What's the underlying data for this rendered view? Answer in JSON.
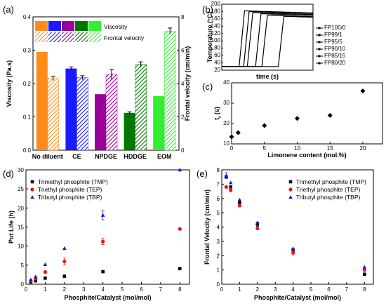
{
  "panels": {
    "a": "(a)",
    "b": "(b)",
    "c": "(c)",
    "d": "(d)",
    "e": "(e)"
  },
  "chart_data": [
    {
      "id": "a",
      "type": "bar",
      "categories": [
        "No diluent",
        "CE",
        "NPDGE",
        "HDDGE",
        "EOM"
      ],
      "series": [
        {
          "name": "Viscosity",
          "values": [
            0.295,
            0.245,
            0.168,
            0.112,
            0.162
          ],
          "errors": [
            0,
            0.005,
            0,
            0.003,
            0
          ]
        },
        {
          "name": "Frontal velocity",
          "values": [
            4.3,
            4.35,
            4.55,
            5.15,
            7.15
          ],
          "errors": [
            0.12,
            0.12,
            0.3,
            0.15,
            0.18
          ]
        }
      ],
      "colors": [
        "#ff8c1a",
        "#1a1aff",
        "#990099",
        "#007700",
        "#33ee33"
      ],
      "ylabel": "Viscosity (Pa.s)",
      "ylabel_right": "Frontal velocity (cm/min)",
      "ylim": [
        0,
        0.4
      ],
      "ylim_right": [
        0,
        8
      ],
      "yticks": [
        "0.0",
        "0.1",
        "0.2",
        "0.3",
        "0.4"
      ],
      "yticks_right": [
        "0",
        "2",
        "4",
        "6",
        "8"
      ]
    },
    {
      "id": "b",
      "type": "line",
      "xlabel": "time (s)",
      "ylabel": "Temperature (°C)",
      "xlim": [
        0,
        100
      ],
      "ylim": [
        20,
        200
      ],
      "yticks": [
        "20",
        "40",
        "60",
        "80",
        "100",
        "120",
        "140",
        "160",
        "180",
        "200"
      ],
      "legend": [
        "FP100/0",
        "FP99/1",
        "FP95/5",
        "FP90/10",
        "FP85/15",
        "FP80/20"
      ],
      "series": [
        {
          "name": "FP100/0",
          "onset": 19,
          "peak": 182
        },
        {
          "name": "FP99/1",
          "onset": 24,
          "peak": 180
        },
        {
          "name": "FP95/5",
          "onset": 28,
          "peak": 177
        },
        {
          "name": "FP90/10",
          "onset": 37,
          "peak": 174
        },
        {
          "name": "FP85/15",
          "onset": 44,
          "peak": 170
        },
        {
          "name": "FP80/20",
          "onset": 62,
          "peak": 167
        }
      ]
    },
    {
      "id": "c",
      "type": "scatter",
      "xlabel": "Limonene content (mol.%)",
      "ylabel": "t",
      "ylabel_sub": "r",
      "ylabel_unit": " (s)",
      "xlim": [
        0,
        23
      ],
      "ylim": [
        10,
        40
      ],
      "xticks": [
        "0",
        "5",
        "10",
        "15",
        "20"
      ],
      "yticks": [
        "10",
        "20",
        "30",
        "40"
      ],
      "x": [
        0,
        1,
        5,
        10,
        15,
        20
      ],
      "y": [
        13.5,
        15.5,
        19,
        22.5,
        24,
        36
      ]
    },
    {
      "id": "d",
      "type": "scatter",
      "xlabel": "Phosphite/Catalyst (mol/mol)",
      "ylabel": "Pot Life (h)",
      "xlim": [
        0,
        8.5
      ],
      "ylim": [
        0,
        30
      ],
      "xticks": [
        "0",
        "1",
        "2",
        "3",
        "4",
        "5",
        "6",
        "7",
        "8"
      ],
      "yticks": [
        "0",
        "5",
        "10",
        "15",
        "20",
        "25",
        "30"
      ],
      "legend_position": "top-left",
      "series": [
        {
          "name": "Trimethyl phosphite (TMP)",
          "color": "#000000",
          "marker": "square",
          "x": [
            0.25,
            0.5,
            1,
            2,
            4,
            8
          ],
          "y": [
            0.6,
            0.9,
            1.6,
            2.1,
            3.3,
            4.1
          ],
          "err": [
            0,
            0,
            0,
            0,
            0,
            0
          ]
        },
        {
          "name": "Triethyl phosphite (TEP)",
          "color": "#ee1111",
          "marker": "circle",
          "x": [
            0.25,
            0.5,
            1,
            2,
            4,
            8
          ],
          "y": [
            0.9,
            1.5,
            3.2,
            6.0,
            11.2,
            14.5
          ],
          "err": [
            0,
            0,
            0.3,
            0.9,
            0.8,
            0
          ]
        },
        {
          "name": "Tributyl phosphite (TBP)",
          "color": "#1a1acc",
          "marker": "triangle",
          "x": [
            0.25,
            0.5,
            1,
            2,
            4,
            8
          ],
          "y": [
            1.2,
            2.0,
            5.2,
            9.4,
            18.1,
            30.0
          ],
          "err": [
            0,
            0,
            0,
            0,
            1.2,
            0
          ]
        }
      ]
    },
    {
      "id": "e",
      "type": "scatter",
      "xlabel": "Phosphite/Catalyst (mol/mol)",
      "ylabel": "Frontal Velocity (cm/min)",
      "xlim": [
        0,
        8.5
      ],
      "ylim": [
        0,
        8
      ],
      "xticks": [
        "0",
        "1",
        "2",
        "3",
        "4",
        "5",
        "6",
        "7",
        "8"
      ],
      "yticks": [
        "0",
        "1",
        "2",
        "3",
        "4",
        "5",
        "6",
        "7",
        "8"
      ],
      "legend_position": "top-right",
      "series": [
        {
          "name": "Trimethyl phosphite (TMP)",
          "color": "#000000",
          "marker": "square",
          "x": [
            0.25,
            0.5,
            1,
            2,
            4,
            8
          ],
          "y": [
            7.5,
            6.8,
            5.7,
            4.2,
            2.4,
            0.7
          ],
          "err": [
            0,
            0,
            0,
            0.15,
            0,
            0
          ]
        },
        {
          "name": "Triethyl phosphite (TEP)",
          "color": "#ee1111",
          "marker": "circle",
          "x": [
            0.25,
            0.5,
            1,
            2,
            4,
            8
          ],
          "y": [
            6.8,
            6.6,
            5.5,
            3.9,
            2.2,
            1.0
          ],
          "err": [
            0,
            0.15,
            0,
            0,
            0.15,
            0.1
          ]
        },
        {
          "name": "Tributyl phosphite (TBP)",
          "color": "#1a1acc",
          "marker": "triangle",
          "x": [
            0.25,
            0.5,
            1,
            2,
            4,
            8
          ],
          "y": [
            7.6,
            7.1,
            5.9,
            4.3,
            2.5,
            1.2
          ],
          "err": [
            0.2,
            0,
            0,
            0,
            0,
            0
          ]
        }
      ]
    }
  ]
}
